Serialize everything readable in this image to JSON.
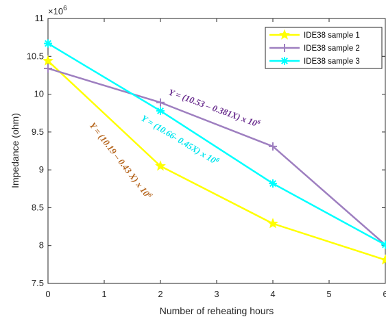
{
  "chart_data": {
    "type": "line",
    "xlabel": "Number of reheating hours",
    "ylabel": "Impedance (ohm)",
    "xlim": [
      0,
      6
    ],
    "ylim": [
      7.5,
      11
    ],
    "y_multiplier": "×10",
    "y_multiplier_exp": "6",
    "x_ticks": [
      "0",
      "1",
      "2",
      "3",
      "4",
      "5",
      "6"
    ],
    "y_ticks": [
      "7.5",
      "8",
      "8.5",
      "9",
      "9.5",
      "10",
      "10.5",
      "11"
    ],
    "grid": false,
    "legend_position": "top-right",
    "series": [
      {
        "name": "IDE38 sample 1",
        "color": "#ffff00",
        "marker": "star",
        "x": [
          0,
          2,
          4,
          6
        ],
        "y": [
          10.44,
          9.05,
          8.29,
          7.81
        ]
      },
      {
        "name": "IDE38 sample 2",
        "color": "#9e7fc0",
        "marker": "plus",
        "x": [
          0,
          2,
          4,
          6
        ],
        "y": [
          10.34,
          9.89,
          9.31,
          8.01
        ]
      },
      {
        "name": "IDE38 sample 3",
        "color": "#00ffff",
        "marker": "asterisk",
        "x": [
          0,
          2,
          4,
          6
        ],
        "y": [
          10.67,
          9.78,
          8.82,
          8.01
        ]
      }
    ],
    "annotations": [
      {
        "text": "Y = (10.53 – 0.381X) x 10",
        "sup": "6",
        "color": "#6b2f8f"
      },
      {
        "text": "Y = (10.66- 0.45X) x 10",
        "sup": "6",
        "color": "#00e5ee"
      },
      {
        "text": "Y = (10.19 – 0.43 X) x 10",
        "sup": "6",
        "color": "#b5651d"
      }
    ]
  }
}
